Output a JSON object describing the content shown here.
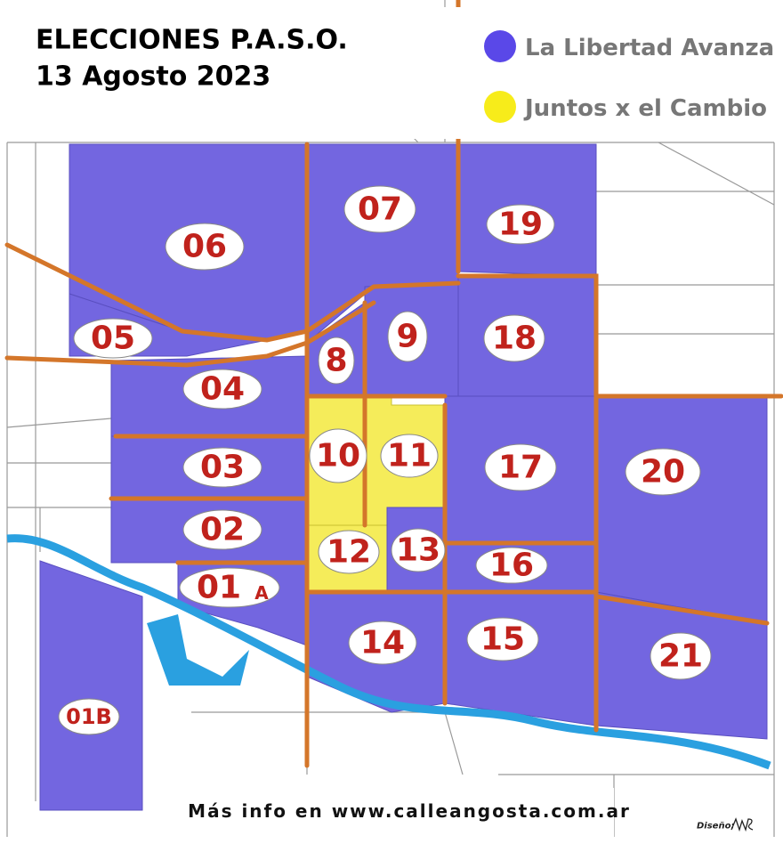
{
  "header": {
    "title_line1": "ELECCIONES P.A.S.O.",
    "title_line2": "13 Agosto 2023"
  },
  "legend": {
    "items": [
      "La Libertad Avanza",
      "Juntos x el Cambio"
    ]
  },
  "districts": [
    {
      "label": "06"
    },
    {
      "label": "07"
    },
    {
      "label": "19"
    },
    {
      "label": "05"
    },
    {
      "label": "9"
    },
    {
      "label": "18"
    },
    {
      "label": "8"
    },
    {
      "label": "04"
    },
    {
      "label": "10"
    },
    {
      "label": "11"
    },
    {
      "label": "17"
    },
    {
      "label": "20"
    },
    {
      "label": "03"
    },
    {
      "label": "02"
    },
    {
      "label": "12"
    },
    {
      "label": "13"
    },
    {
      "label": "16"
    },
    {
      "label": "01",
      "suffix": "A"
    },
    {
      "label": "14"
    },
    {
      "label": "15"
    },
    {
      "label": "21"
    },
    {
      "label": "01B"
    }
  ],
  "footer": {
    "text": "Más info en www.calleangosta.com.ar",
    "credit": "Diseño:"
  }
}
